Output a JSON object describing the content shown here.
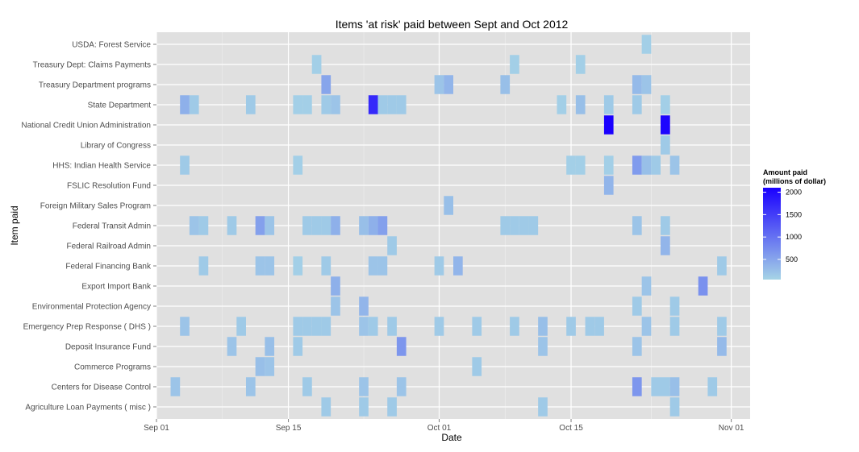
{
  "chart_data": {
    "type": "heatmap",
    "title": "Items 'at risk' paid between Sept and Oct 2012",
    "xlabel": "Date",
    "ylabel": "Item paid",
    "x_ticks": [
      "Sep 01",
      "Sep 15",
      "Oct 01",
      "Oct 15",
      "Nov 01"
    ],
    "x_tick_dates": [
      "2012-09-01",
      "2012-09-15",
      "2012-10-01",
      "2012-10-15",
      "2012-11-01"
    ],
    "xlim": [
      "2012-09-01",
      "2012-11-03"
    ],
    "categories": [
      "Agriculture Loan Payments ( misc )",
      "Centers for Disease Control",
      "Commerce Programs",
      "Deposit Insurance Fund",
      "Emergency Prep Response ( DHS )",
      "Environmental Protection Agency",
      "Export Import Bank",
      "Federal Financing Bank",
      "Federal Railroad Admin",
      "Federal Transit Admin",
      "Foreign Military Sales Program",
      "FSLIC Resolution Fund",
      "HHS: Indian Health Service",
      "Library of Congress",
      "National Credit Union Administration",
      "State Department",
      "Treasury Department programs",
      "Treasury Dept: Claims Payments",
      "USDA: Forest Service"
    ],
    "legend": {
      "title_line1": "Amount paid",
      "title_line2": "(millions of dollar)",
      "ticks": [
        500,
        1000,
        1500,
        2000
      ],
      "min": 50,
      "max": 2100,
      "color_low": "#a6d4e6",
      "color_high": "#1a00ff"
    },
    "grid": true,
    "panel_color": "#e0e0e0",
    "points": [
      {
        "item": "USDA: Forest Service",
        "date": "2012-10-23",
        "value": 100
      },
      {
        "item": "Treasury Dept: Claims Payments",
        "date": "2012-09-18",
        "value": 100
      },
      {
        "item": "Treasury Dept: Claims Payments",
        "date": "2012-10-09",
        "value": 100
      },
      {
        "item": "Treasury Dept: Claims Payments",
        "date": "2012-10-16",
        "value": 100
      },
      {
        "item": "Treasury Department programs",
        "date": "2012-09-19",
        "value": 500
      },
      {
        "item": "Treasury Department programs",
        "date": "2012-10-01",
        "value": 200
      },
      {
        "item": "Treasury Department programs",
        "date": "2012-10-02",
        "value": 350
      },
      {
        "item": "Treasury Department programs",
        "date": "2012-10-08",
        "value": 250
      },
      {
        "item": "Treasury Department programs",
        "date": "2012-10-22",
        "value": 300
      },
      {
        "item": "Treasury Department programs",
        "date": "2012-10-23",
        "value": 200
      },
      {
        "item": "State Department",
        "date": "2012-09-04",
        "value": 400
      },
      {
        "item": "State Department",
        "date": "2012-09-05",
        "value": 150
      },
      {
        "item": "State Department",
        "date": "2012-09-11",
        "value": 150
      },
      {
        "item": "State Department",
        "date": "2012-09-16",
        "value": 100
      },
      {
        "item": "State Department",
        "date": "2012-09-17",
        "value": 100
      },
      {
        "item": "State Department",
        "date": "2012-09-19",
        "value": 150
      },
      {
        "item": "State Department",
        "date": "2012-09-20",
        "value": 200
      },
      {
        "item": "State Department",
        "date": "2012-09-24",
        "value": 1700
      },
      {
        "item": "State Department",
        "date": "2012-09-25",
        "value": 150
      },
      {
        "item": "State Department",
        "date": "2012-09-26",
        "value": 150
      },
      {
        "item": "State Department",
        "date": "2012-09-27",
        "value": 150
      },
      {
        "item": "State Department",
        "date": "2012-10-14",
        "value": 100
      },
      {
        "item": "State Department",
        "date": "2012-10-16",
        "value": 250
      },
      {
        "item": "State Department",
        "date": "2012-10-19",
        "value": 150
      },
      {
        "item": "State Department",
        "date": "2012-10-22",
        "value": 150
      },
      {
        "item": "State Department",
        "date": "2012-10-25",
        "value": 100
      },
      {
        "item": "National Credit Union Administration",
        "date": "2012-10-19",
        "value": 2100
      },
      {
        "item": "National Credit Union Administration",
        "date": "2012-10-25",
        "value": 2050
      },
      {
        "item": "Library of Congress",
        "date": "2012-10-25",
        "value": 150
      },
      {
        "item": "HHS: Indian Health Service",
        "date": "2012-09-04",
        "value": 150
      },
      {
        "item": "HHS: Indian Health Service",
        "date": "2012-09-16",
        "value": 100
      },
      {
        "item": "HHS: Indian Health Service",
        "date": "2012-10-15",
        "value": 100
      },
      {
        "item": "HHS: Indian Health Service",
        "date": "2012-10-16",
        "value": 100
      },
      {
        "item": "HHS: Indian Health Service",
        "date": "2012-10-19",
        "value": 100
      },
      {
        "item": "HHS: Indian Health Service",
        "date": "2012-10-22",
        "value": 600
      },
      {
        "item": "HHS: Indian Health Service",
        "date": "2012-10-23",
        "value": 250
      },
      {
        "item": "HHS: Indian Health Service",
        "date": "2012-10-24",
        "value": 150
      },
      {
        "item": "HHS: Indian Health Service",
        "date": "2012-10-26",
        "value": 200
      },
      {
        "item": "FSLIC Resolution Fund",
        "date": "2012-10-19",
        "value": 350
      },
      {
        "item": "Foreign Military Sales Program",
        "date": "2012-10-02",
        "value": 250
      },
      {
        "item": "Federal Transit Admin",
        "date": "2012-09-05",
        "value": 200
      },
      {
        "item": "Federal Transit Admin",
        "date": "2012-09-06",
        "value": 150
      },
      {
        "item": "Federal Transit Admin",
        "date": "2012-09-09",
        "value": 150
      },
      {
        "item": "Federal Transit Admin",
        "date": "2012-09-12",
        "value": 550
      },
      {
        "item": "Federal Transit Admin",
        "date": "2012-09-13",
        "value": 200
      },
      {
        "item": "Federal Transit Admin",
        "date": "2012-09-17",
        "value": 150
      },
      {
        "item": "Federal Transit Admin",
        "date": "2012-09-18",
        "value": 150
      },
      {
        "item": "Federal Transit Admin",
        "date": "2012-09-19",
        "value": 150
      },
      {
        "item": "Federal Transit Admin",
        "date": "2012-09-20",
        "value": 400
      },
      {
        "item": "Federal Transit Admin",
        "date": "2012-09-23",
        "value": 250
      },
      {
        "item": "Federal Transit Admin",
        "date": "2012-09-24",
        "value": 400
      },
      {
        "item": "Federal Transit Admin",
        "date": "2012-09-25",
        "value": 550
      },
      {
        "item": "Federal Transit Admin",
        "date": "2012-10-08",
        "value": 150
      },
      {
        "item": "Federal Transit Admin",
        "date": "2012-10-09",
        "value": 150
      },
      {
        "item": "Federal Transit Admin",
        "date": "2012-10-10",
        "value": 150
      },
      {
        "item": "Federal Transit Admin",
        "date": "2012-10-11",
        "value": 150
      },
      {
        "item": "Federal Transit Admin",
        "date": "2012-10-22",
        "value": 200
      },
      {
        "item": "Federal Transit Admin",
        "date": "2012-10-25",
        "value": 150
      },
      {
        "item": "Federal Railroad Admin",
        "date": "2012-09-26",
        "value": 150
      },
      {
        "item": "Federal Railroad Admin",
        "date": "2012-10-25",
        "value": 350
      },
      {
        "item": "Federal Financing Bank",
        "date": "2012-09-06",
        "value": 150
      },
      {
        "item": "Federal Financing Bank",
        "date": "2012-09-12",
        "value": 200
      },
      {
        "item": "Federal Financing Bank",
        "date": "2012-09-13",
        "value": 200
      },
      {
        "item": "Federal Financing Bank",
        "date": "2012-09-16",
        "value": 100
      },
      {
        "item": "Federal Financing Bank",
        "date": "2012-09-19",
        "value": 150
      },
      {
        "item": "Federal Financing Bank",
        "date": "2012-09-24",
        "value": 200
      },
      {
        "item": "Federal Financing Bank",
        "date": "2012-09-25",
        "value": 200
      },
      {
        "item": "Federal Financing Bank",
        "date": "2012-10-01",
        "value": 150
      },
      {
        "item": "Federal Financing Bank",
        "date": "2012-10-03",
        "value": 350
      },
      {
        "item": "Federal Financing Bank",
        "date": "2012-10-31",
        "value": 150
      },
      {
        "item": "Export Import Bank",
        "date": "2012-09-20",
        "value": 400
      },
      {
        "item": "Export Import Bank",
        "date": "2012-10-23",
        "value": 200
      },
      {
        "item": "Export Import Bank",
        "date": "2012-10-29",
        "value": 700
      },
      {
        "item": "Environmental Protection Agency",
        "date": "2012-09-20",
        "value": 200
      },
      {
        "item": "Environmental Protection Agency",
        "date": "2012-09-23",
        "value": 350
      },
      {
        "item": "Environmental Protection Agency",
        "date": "2012-10-22",
        "value": 150
      },
      {
        "item": "Environmental Protection Agency",
        "date": "2012-10-26",
        "value": 150
      },
      {
        "item": "Emergency Prep Response ( DHS )",
        "date": "2012-09-04",
        "value": 200
      },
      {
        "item": "Emergency Prep Response ( DHS )",
        "date": "2012-09-10",
        "value": 150
      },
      {
        "item": "Emergency Prep Response ( DHS )",
        "date": "2012-09-16",
        "value": 150
      },
      {
        "item": "Emergency Prep Response ( DHS )",
        "date": "2012-09-17",
        "value": 150
      },
      {
        "item": "Emergency Prep Response ( DHS )",
        "date": "2012-09-18",
        "value": 150
      },
      {
        "item": "Emergency Prep Response ( DHS )",
        "date": "2012-09-19",
        "value": 150
      },
      {
        "item": "Emergency Prep Response ( DHS )",
        "date": "2012-09-23",
        "value": 200
      },
      {
        "item": "Emergency Prep Response ( DHS )",
        "date": "2012-09-24",
        "value": 150
      },
      {
        "item": "Emergency Prep Response ( DHS )",
        "date": "2012-09-26",
        "value": 150
      },
      {
        "item": "Emergency Prep Response ( DHS )",
        "date": "2012-10-01",
        "value": 150
      },
      {
        "item": "Emergency Prep Response ( DHS )",
        "date": "2012-10-05",
        "value": 150
      },
      {
        "item": "Emergency Prep Response ( DHS )",
        "date": "2012-10-09",
        "value": 150
      },
      {
        "item": "Emergency Prep Response ( DHS )",
        "date": "2012-10-12",
        "value": 250
      },
      {
        "item": "Emergency Prep Response ( DHS )",
        "date": "2012-10-15",
        "value": 150
      },
      {
        "item": "Emergency Prep Response ( DHS )",
        "date": "2012-10-17",
        "value": 150
      },
      {
        "item": "Emergency Prep Response ( DHS )",
        "date": "2012-10-18",
        "value": 150
      },
      {
        "item": "Emergency Prep Response ( DHS )",
        "date": "2012-10-23",
        "value": 200
      },
      {
        "item": "Emergency Prep Response ( DHS )",
        "date": "2012-10-26",
        "value": 150
      },
      {
        "item": "Emergency Prep Response ( DHS )",
        "date": "2012-10-31",
        "value": 150
      },
      {
        "item": "Deposit Insurance Fund",
        "date": "2012-09-09",
        "value": 200
      },
      {
        "item": "Deposit Insurance Fund",
        "date": "2012-09-13",
        "value": 250
      },
      {
        "item": "Deposit Insurance Fund",
        "date": "2012-09-16",
        "value": 150
      },
      {
        "item": "Deposit Insurance Fund",
        "date": "2012-09-27",
        "value": 650
      },
      {
        "item": "Deposit Insurance Fund",
        "date": "2012-10-12",
        "value": 200
      },
      {
        "item": "Deposit Insurance Fund",
        "date": "2012-10-22",
        "value": 200
      },
      {
        "item": "Deposit Insurance Fund",
        "date": "2012-10-31",
        "value": 300
      },
      {
        "item": "Commerce Programs",
        "date": "2012-09-12",
        "value": 250
      },
      {
        "item": "Commerce Programs",
        "date": "2012-09-13",
        "value": 200
      },
      {
        "item": "Commerce Programs",
        "date": "2012-10-05",
        "value": 150
      },
      {
        "item": "Centers for Disease Control",
        "date": "2012-09-03",
        "value": 200
      },
      {
        "item": "Centers for Disease Control",
        "date": "2012-09-11",
        "value": 200
      },
      {
        "item": "Centers for Disease Control",
        "date": "2012-09-17",
        "value": 150
      },
      {
        "item": "Centers for Disease Control",
        "date": "2012-09-23",
        "value": 200
      },
      {
        "item": "Centers for Disease Control",
        "date": "2012-09-27",
        "value": 200
      },
      {
        "item": "Centers for Disease Control",
        "date": "2012-10-22",
        "value": 650
      },
      {
        "item": "Centers for Disease Control",
        "date": "2012-10-24",
        "value": 150
      },
      {
        "item": "Centers for Disease Control",
        "date": "2012-10-25",
        "value": 150
      },
      {
        "item": "Centers for Disease Control",
        "date": "2012-10-26",
        "value": 250
      },
      {
        "item": "Centers for Disease Control",
        "date": "2012-10-30",
        "value": 150
      },
      {
        "item": "Agriculture Loan Payments ( misc )",
        "date": "2012-09-19",
        "value": 150
      },
      {
        "item": "Agriculture Loan Payments ( misc )",
        "date": "2012-09-23",
        "value": 150
      },
      {
        "item": "Agriculture Loan Payments ( misc )",
        "date": "2012-09-26",
        "value": 150
      },
      {
        "item": "Agriculture Loan Payments ( misc )",
        "date": "2012-10-12",
        "value": 150
      },
      {
        "item": "Agriculture Loan Payments ( misc )",
        "date": "2012-10-26",
        "value": 150
      }
    ]
  }
}
